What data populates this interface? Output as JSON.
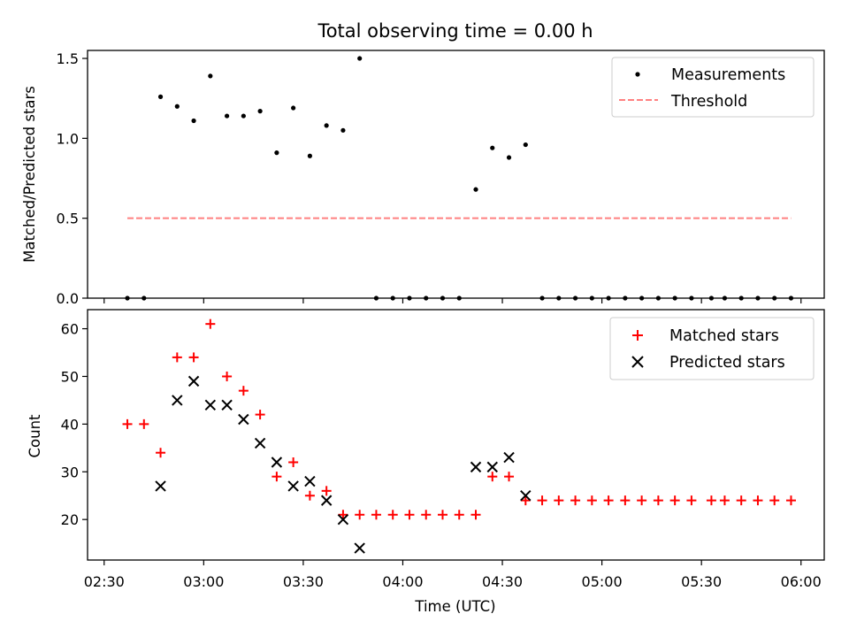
{
  "figure": {
    "title": "Total observing time = 0.00 h",
    "xlabel": "Time (UTC)"
  },
  "colors": {
    "measurements": "#000000",
    "threshold": "#ff8080",
    "matched": "#ff0000",
    "predicted": "#000000"
  },
  "chart_data": [
    {
      "type": "scatter",
      "panel": "top",
      "title": "Total observing time = 0.00 h",
      "ylabel": "Matched/Predicted stars",
      "xlabel": "",
      "ylim": [
        0,
        1.55
      ],
      "yticks": [
        0.0,
        0.5,
        1.0,
        1.5
      ],
      "ytick_labels": [
        "0.0",
        "0.5",
        "1.0",
        "1.5"
      ],
      "legend": {
        "placement": "upper right",
        "entries": [
          "Measurements",
          "Threshold"
        ]
      },
      "threshold": {
        "name": "Threshold",
        "value": 0.5,
        "x_start": "02:37",
        "x_end": "05:57"
      },
      "series": [
        {
          "name": "Measurements",
          "marker": "dot",
          "points": [
            [
              "02:37",
              0.0
            ],
            [
              "02:42",
              0.0
            ],
            [
              "02:47",
              1.26
            ],
            [
              "02:52",
              1.2
            ],
            [
              "02:57",
              1.11
            ],
            [
              "03:02",
              1.39
            ],
            [
              "03:07",
              1.14
            ],
            [
              "03:12",
              1.14
            ],
            [
              "03:17",
              1.17
            ],
            [
              "03:22",
              0.91
            ],
            [
              "03:27",
              1.19
            ],
            [
              "03:32",
              0.89
            ],
            [
              "03:37",
              1.08
            ],
            [
              "03:42",
              1.05
            ],
            [
              "03:47",
              1.5
            ],
            [
              "03:52",
              0.0
            ],
            [
              "03:57",
              0.0
            ],
            [
              "04:02",
              0.0
            ],
            [
              "04:07",
              0.0
            ],
            [
              "04:12",
              0.0
            ],
            [
              "04:17",
              0.0
            ],
            [
              "04:22",
              0.68
            ],
            [
              "04:27",
              0.94
            ],
            [
              "04:32",
              0.88
            ],
            [
              "04:37",
              0.96
            ],
            [
              "04:42",
              0.0
            ],
            [
              "04:47",
              0.0
            ],
            [
              "04:52",
              0.0
            ],
            [
              "04:57",
              0.0
            ],
            [
              "05:02",
              0.0
            ],
            [
              "05:07",
              0.0
            ],
            [
              "05:12",
              0.0
            ],
            [
              "05:17",
              0.0
            ],
            [
              "05:22",
              0.0
            ],
            [
              "05:27",
              0.0
            ],
            [
              "05:33",
              0.0
            ],
            [
              "05:37",
              0.0
            ],
            [
              "05:42",
              0.0
            ],
            [
              "05:47",
              0.0
            ],
            [
              "05:52",
              0.0
            ],
            [
              "05:57",
              0.0
            ]
          ]
        }
      ]
    },
    {
      "type": "scatter",
      "panel": "bottom",
      "ylabel": "Count",
      "xlabel": "Time (UTC)",
      "ylim": [
        11.5,
        64
      ],
      "yticks": [
        20,
        30,
        40,
        50,
        60
      ],
      "ytick_labels": [
        "20",
        "30",
        "40",
        "50",
        "60"
      ],
      "legend": {
        "placement": "upper right",
        "entries": [
          "Matched stars",
          "Predicted stars"
        ]
      },
      "series": [
        {
          "name": "Matched stars",
          "marker": "plus",
          "points": [
            [
              "02:37",
              40
            ],
            [
              "02:42",
              40
            ],
            [
              "02:47",
              34
            ],
            [
              "02:52",
              54
            ],
            [
              "02:57",
              54
            ],
            [
              "03:02",
              61
            ],
            [
              "03:07",
              50
            ],
            [
              "03:12",
              47
            ],
            [
              "03:17",
              42
            ],
            [
              "03:22",
              29
            ],
            [
              "03:27",
              32
            ],
            [
              "03:32",
              25
            ],
            [
              "03:37",
              26
            ],
            [
              "03:42",
              21
            ],
            [
              "03:47",
              21
            ],
            [
              "03:52",
              21
            ],
            [
              "03:57",
              21
            ],
            [
              "04:02",
              21
            ],
            [
              "04:07",
              21
            ],
            [
              "04:12",
              21
            ],
            [
              "04:17",
              21
            ],
            [
              "04:22",
              21
            ],
            [
              "04:27",
              29
            ],
            [
              "04:32",
              29
            ],
            [
              "04:37",
              24
            ],
            [
              "04:42",
              24
            ],
            [
              "04:47",
              24
            ],
            [
              "04:52",
              24
            ],
            [
              "04:57",
              24
            ],
            [
              "05:02",
              24
            ],
            [
              "05:07",
              24
            ],
            [
              "05:12",
              24
            ],
            [
              "05:17",
              24
            ],
            [
              "05:22",
              24
            ],
            [
              "05:27",
              24
            ],
            [
              "05:33",
              24
            ],
            [
              "05:37",
              24
            ],
            [
              "05:42",
              24
            ],
            [
              "05:47",
              24
            ],
            [
              "05:52",
              24
            ],
            [
              "05:57",
              24
            ]
          ]
        },
        {
          "name": "Predicted stars",
          "marker": "x",
          "points": [
            [
              "02:47",
              27
            ],
            [
              "02:52",
              45
            ],
            [
              "02:57",
              49
            ],
            [
              "03:02",
              44
            ],
            [
              "03:07",
              44
            ],
            [
              "03:12",
              41
            ],
            [
              "03:17",
              36
            ],
            [
              "03:22",
              32
            ],
            [
              "03:27",
              27
            ],
            [
              "03:32",
              28
            ],
            [
              "03:37",
              24
            ],
            [
              "03:42",
              20
            ],
            [
              "03:47",
              14
            ],
            [
              "04:22",
              31
            ],
            [
              "04:27",
              31
            ],
            [
              "04:32",
              33
            ],
            [
              "04:37",
              25
            ]
          ]
        }
      ]
    }
  ],
  "x_axis": {
    "xlim": [
      "02:25",
      "06:07"
    ],
    "ticks": [
      "02:30",
      "03:00",
      "03:30",
      "04:00",
      "04:30",
      "05:00",
      "05:30",
      "06:00"
    ]
  }
}
